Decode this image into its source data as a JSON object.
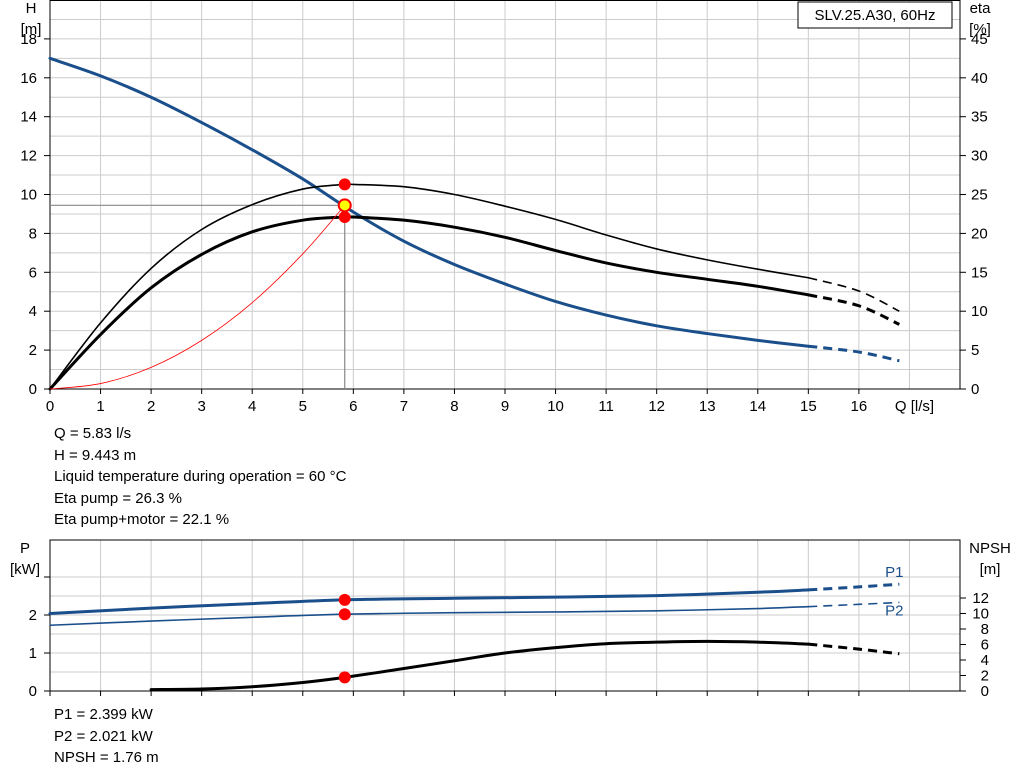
{
  "colors": {
    "head": "#1a4f8b",
    "efficiency": "#000000",
    "system": "#ff0000",
    "point": "#ff0000",
    "point_yellow": "#ffff00",
    "grid": "#cccccc",
    "ref": "#888888"
  },
  "top_info": {
    "q": "Q = 5.83 l/s",
    "h": "H = 9.443 m",
    "temp": "Liquid temperature during operation = 60 °C",
    "eta_pump": "Eta pump = 26.3 %",
    "eta_total": "Eta pump+motor = 22.1 %"
  },
  "bottom_info": {
    "p1": "P1 = 2.399 kW",
    "p2": "P2 = 2.021 kW",
    "npsh": "NPSH = 1.76 m"
  },
  "chart_data": [
    {
      "type": "line",
      "legend_box": "SLV.25.A30, 60Hz",
      "xlabel": "Q [l/s]",
      "ylabel_left": [
        "H",
        "[m]"
      ],
      "ylabel_right": [
        "eta",
        "[%]"
      ],
      "xlim": [
        0,
        18
      ],
      "ylim_left": [
        0,
        20
      ],
      "ylim_right": [
        0,
        50
      ],
      "x_ticks": [
        0,
        1,
        2,
        3,
        4,
        5,
        6,
        7,
        8,
        9,
        10,
        11,
        12,
        13,
        14,
        15,
        16
      ],
      "y_ticks_left": [
        0,
        2,
        4,
        6,
        8,
        10,
        12,
        14,
        16,
        18
      ],
      "y_ticks_right": [
        0,
        5,
        10,
        15,
        20,
        25,
        30,
        35,
        40,
        45
      ],
      "grid": true,
      "operating_point": {
        "q": 5.83,
        "h": 9.443,
        "eta_pump": 26.3,
        "eta_total": 22.1
      },
      "series": [
        {
          "key": "head",
          "axis": "left",
          "solid_until": 15,
          "width": 3,
          "points": [
            [
              0,
              17.0
            ],
            [
              1,
              16.1
            ],
            [
              2,
              15.0
            ],
            [
              3,
              13.7
            ],
            [
              4,
              12.3
            ],
            [
              5,
              10.8
            ],
            [
              6,
              9.1
            ],
            [
              7,
              7.6
            ],
            [
              8,
              6.4
            ],
            [
              9,
              5.4
            ],
            [
              10,
              4.5
            ],
            [
              11,
              3.8
            ],
            [
              12,
              3.25
            ],
            [
              13,
              2.85
            ],
            [
              14,
              2.5
            ],
            [
              15,
              2.2
            ],
            [
              16,
              1.9
            ],
            [
              16.8,
              1.45
            ]
          ]
        },
        {
          "key": "eta_pump",
          "axis": "right",
          "solid_until": 15,
          "width": 1.6,
          "points": [
            [
              0,
              0
            ],
            [
              1,
              8.5
            ],
            [
              2,
              15.5
            ],
            [
              3,
              20.5
            ],
            [
              4,
              23.7
            ],
            [
              5,
              25.7
            ],
            [
              5.83,
              26.3
            ],
            [
              6,
              26.3
            ],
            [
              7,
              26.0
            ],
            [
              8,
              25.0
            ],
            [
              9,
              23.5
            ],
            [
              10,
              21.8
            ],
            [
              11,
              19.8
            ],
            [
              12,
              18.0
            ],
            [
              13,
              16.6
            ],
            [
              14,
              15.4
            ],
            [
              15,
              14.3
            ],
            [
              16,
              12.6
            ],
            [
              16.8,
              10.0
            ]
          ]
        },
        {
          "key": "eta_total",
          "axis": "right",
          "solid_until": 15,
          "width": 3,
          "points": [
            [
              0,
              0
            ],
            [
              1,
              7.0
            ],
            [
              2,
              13.0
            ],
            [
              3,
              17.3
            ],
            [
              4,
              20.2
            ],
            [
              5,
              21.7
            ],
            [
              5.83,
              22.1
            ],
            [
              6,
              22.1
            ],
            [
              7,
              21.7
            ],
            [
              8,
              20.8
            ],
            [
              9,
              19.5
            ],
            [
              10,
              17.8
            ],
            [
              11,
              16.2
            ],
            [
              12,
              15.0
            ],
            [
              13,
              14.1
            ],
            [
              14,
              13.2
            ],
            [
              15,
              12.1
            ],
            [
              16,
              10.7
            ],
            [
              16.8,
              8.3
            ]
          ]
        },
        {
          "key": "system",
          "axis": "left",
          "solid_until": 5.83,
          "width": 0.8,
          "points": [
            [
              0,
              0
            ],
            [
              1,
              0.28
            ],
            [
              2,
              1.11
            ],
            [
              3,
              2.5
            ],
            [
              4,
              4.44
            ],
            [
              5,
              6.95
            ],
            [
              5.83,
              9.443
            ]
          ]
        }
      ]
    },
    {
      "type": "line",
      "ylabel_left": [
        "P",
        "[kW]"
      ],
      "ylabel_right": [
        "NPSH",
        "[m]"
      ],
      "xlim": [
        0,
        18
      ],
      "ylim_left": [
        0,
        3
      ],
      "ylim_right": [
        0,
        18
      ],
      "x_ticks": [
        0,
        1,
        2,
        3,
        4,
        5,
        6,
        7,
        8,
        9,
        10,
        11,
        12,
        13,
        14,
        15,
        16
      ],
      "y_ticks_left": [
        0,
        1,
        2
      ],
      "y_ticks_right": [
        0,
        2,
        4,
        6,
        8,
        10,
        12
      ],
      "grid": true,
      "series": [
        {
          "key": "P1",
          "name": "P1",
          "axis": "left",
          "solid_until": 15,
          "width": 3,
          "points": [
            [
              0,
              2.04
            ],
            [
              2,
              2.18
            ],
            [
              4,
              2.3
            ],
            [
              5.83,
              2.399
            ],
            [
              8,
              2.44
            ],
            [
              10,
              2.47
            ],
            [
              12,
              2.51
            ],
            [
              14,
              2.6
            ],
            [
              15,
              2.66
            ],
            [
              16,
              2.74
            ],
            [
              16.8,
              2.81
            ]
          ]
        },
        {
          "key": "P2",
          "name": "P2",
          "axis": "left",
          "solid_until": 15,
          "width": 1.6,
          "points": [
            [
              0,
              1.73
            ],
            [
              2,
              1.84
            ],
            [
              4,
              1.94
            ],
            [
              5.83,
              2.021
            ],
            [
              8,
              2.06
            ],
            [
              10,
              2.08
            ],
            [
              12,
              2.11
            ],
            [
              14,
              2.17
            ],
            [
              15,
              2.22
            ],
            [
              16,
              2.28
            ],
            [
              16.8,
              2.33
            ]
          ]
        },
        {
          "key": "NPSH",
          "axis": "right",
          "solid_until": 15,
          "width": 3,
          "points": [
            [
              2,
              0.18
            ],
            [
              3,
              0.25
            ],
            [
              4,
              0.55
            ],
            [
              5,
              1.1
            ],
            [
              5.83,
              1.76
            ],
            [
              7,
              2.9
            ],
            [
              8,
              3.9
            ],
            [
              9,
              4.9
            ],
            [
              10,
              5.6
            ],
            [
              11,
              6.1
            ],
            [
              12,
              6.3
            ],
            [
              13,
              6.4
            ],
            [
              14,
              6.3
            ],
            [
              15,
              6.05
            ],
            [
              16,
              5.4
            ],
            [
              16.8,
              4.8
            ]
          ]
        }
      ],
      "points": [
        {
          "series": "P1",
          "x": 5.83,
          "y": 2.399
        },
        {
          "series": "P2",
          "x": 5.83,
          "y": 2.021
        },
        {
          "series": "NPSH",
          "x": 5.83,
          "y": 1.76
        }
      ]
    }
  ]
}
